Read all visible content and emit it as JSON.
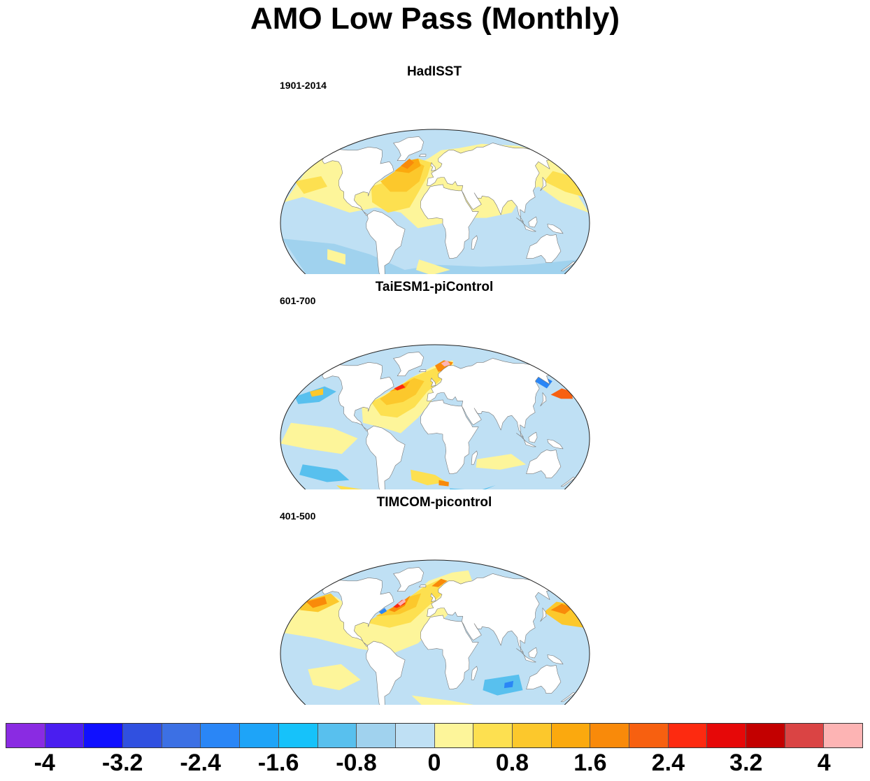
{
  "title": "AMO Low Pass (Monthly)",
  "panels": [
    {
      "name": "HadISST",
      "period": "1901-2014",
      "variant": "obs"
    },
    {
      "name": "TaiESM1-piControl",
      "period": "601-700",
      "variant": "taiesm"
    },
    {
      "name": "TIMCOM-picontrol",
      "period": "401-500",
      "variant": "timcom"
    }
  ],
  "colorbar": {
    "colors": [
      "#8a2be2",
      "#4a1ef0",
      "#1010ff",
      "#3050e0",
      "#3c70e4",
      "#2a86f6",
      "#1ea4f8",
      "#16c2fa",
      "#58c0ee",
      "#a0d2ee",
      "#bfe0f4",
      "#fdf59a",
      "#fde050",
      "#fcc82c",
      "#fba90e",
      "#f98a0a",
      "#f76010",
      "#fd2a10",
      "#e60808",
      "#c30000",
      "#da4444",
      "#fdb4b4"
    ],
    "levels": [
      "-4",
      "-3.6",
      "-3.2",
      "-2.8",
      "-2.4",
      "-2",
      "-1.6",
      "-1.2",
      "-0.8",
      "-0.4",
      "0",
      "0.4",
      "0.8",
      "1.2",
      "1.6",
      "2",
      "2.4",
      "2.8",
      "3.2",
      "3.6",
      "4"
    ],
    "tick_labels": [
      "-4",
      "-3.2",
      "-2.4",
      "-1.6",
      "-0.8",
      "0",
      "0.8",
      "1.6",
      "2.4",
      "3.2",
      "4"
    ]
  }
}
